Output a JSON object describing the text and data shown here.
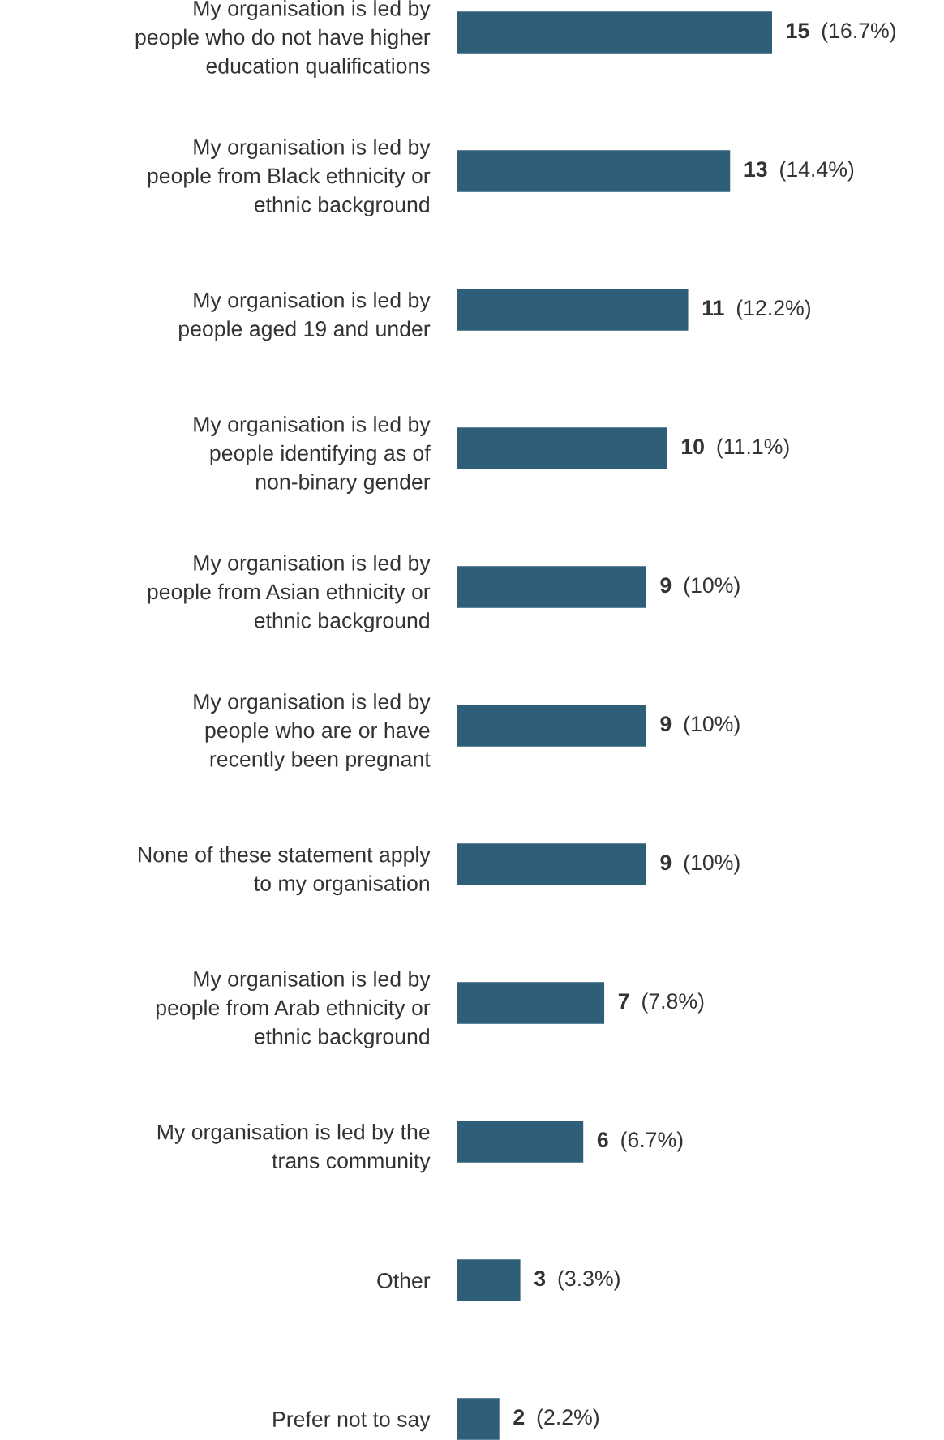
{
  "chart_data": {
    "type": "bar",
    "orientation": "horizontal",
    "categories": [
      "My organisation is led by\npeople who do not have higher\neducation qualifications",
      "My organisation is led by\npeople from Black ethnicity or\nethnic background",
      "My organisation is led by\npeople aged 19 and under",
      "My organisation is led by\npeople identifying as of\nnon-binary gender",
      "My organisation is led by\npeople from Asian ethnicity or\nethnic background",
      "My organisation is led by\npeople who are or have\nrecently been pregnant",
      "None of these statement apply\nto my organisation",
      "My organisation is led by\npeople from Arab ethnicity or\nethnic background",
      "My organisation is led by the\ntrans community",
      "Other",
      "Prefer not to say"
    ],
    "values": [
      15,
      13,
      11,
      10,
      9,
      9,
      9,
      7,
      6,
      3,
      2
    ],
    "value_labels": [
      "15 (16.7%)",
      "13 (14.4%)",
      "11 (12.2%)",
      "10 (11.1%)",
      "9 (10%)",
      "9 (10%)",
      "9 (10%)",
      "7 (7.8%)",
      "6 (6.7%)",
      "3 (3.3%)",
      "2 (2.2%)"
    ],
    "color": "#2e5e78",
    "tick_labels": "y",
    "grid": false,
    "legend": false
  }
}
